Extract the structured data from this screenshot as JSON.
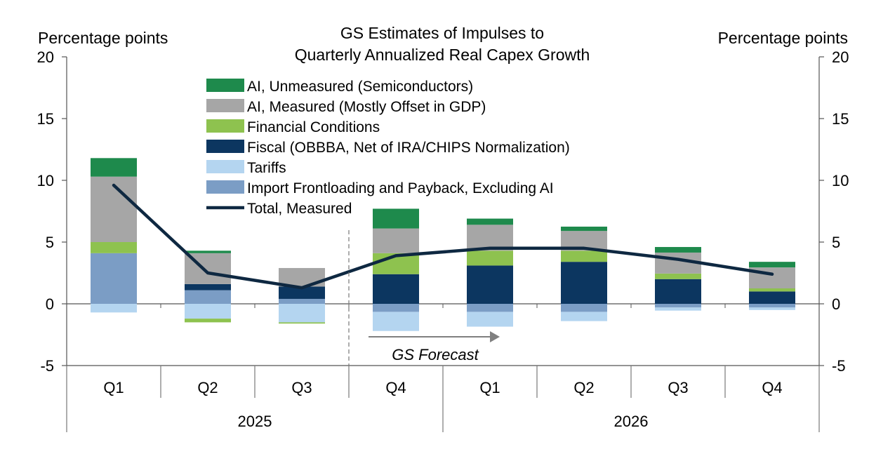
{
  "chart_data": {
    "type": "bar",
    "stacked": true,
    "title": "GS Estimates of Impulses to\nQuarterly Annualized Real Capex Growth",
    "ylabel_left": "Percentage points",
    "ylabel_right": "Percentage points",
    "ylim": [
      -5,
      20
    ],
    "yticks": [
      -5,
      0,
      5,
      10,
      15,
      20
    ],
    "grid": false,
    "legend_position": "top-center",
    "categories": [
      "Q1",
      "Q2",
      "Q3",
      "Q4",
      "Q1",
      "Q2",
      "Q3",
      "Q4"
    ],
    "groups": [
      {
        "label": "2025",
        "categories": [
          "Q1",
          "Q2",
          "Q3",
          "Q4"
        ]
      },
      {
        "label": "2026",
        "categories": [
          "Q1",
          "Q2",
          "Q3",
          "Q4"
        ]
      }
    ],
    "series": [
      {
        "name": "Import Frontloading and Payback, Excluding AI",
        "color": "#7b9dc5",
        "values": [
          4.1,
          1.1,
          0.4,
          -0.65,
          -0.65,
          -0.65,
          -0.3,
          -0.3
        ]
      },
      {
        "name": "Tariffs",
        "color": "#b4d5f0",
        "values": [
          -0.7,
          -1.2,
          -1.5,
          -1.55,
          -1.2,
          -0.75,
          -0.25,
          -0.2
        ]
      },
      {
        "name": "Fiscal (OBBBA, Net of IRA/CHIPS Normalization)",
        "color": "#0c3660",
        "values": [
          0.0,
          0.5,
          1.0,
          2.4,
          3.1,
          3.4,
          2.0,
          1.0
        ]
      },
      {
        "name": "Financial Conditions",
        "color": "#8ec24f",
        "values": [
          0.9,
          -0.3,
          -0.1,
          1.7,
          1.2,
          0.9,
          0.45,
          0.25
        ]
      },
      {
        "name": "AI, Measured (Mostly Offset in GDP)",
        "color": "#a6a6a6",
        "values": [
          5.3,
          2.5,
          1.5,
          2.0,
          2.1,
          1.6,
          1.7,
          1.7
        ]
      },
      {
        "name": "AI, Unmeasured (Semiconductors)",
        "color": "#1e8a4c",
        "values": [
          1.5,
          0.2,
          0.0,
          1.6,
          0.5,
          0.35,
          0.45,
          0.45
        ]
      }
    ],
    "line_series": {
      "name": "Total, Measured",
      "color": "#0e2841",
      "values": [
        9.6,
        2.5,
        1.3,
        3.9,
        4.5,
        4.5,
        3.6,
        2.4
      ]
    },
    "annotations": [
      {
        "text": "GS Forecast",
        "note": "arrow pointing right, forecast begins after 2025 Q3"
      }
    ]
  },
  "legend_order": [
    5,
    4,
    3,
    2,
    1,
    0,
    "line"
  ]
}
